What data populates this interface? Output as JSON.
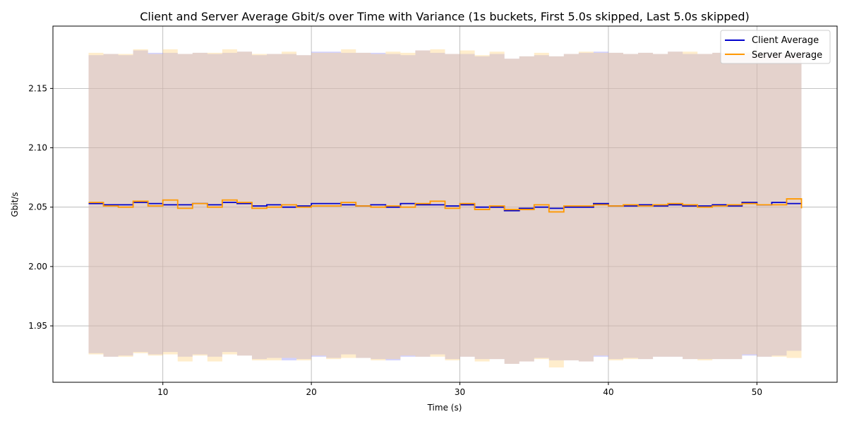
{
  "chart_data": {
    "type": "line",
    "title": "Client and Server Average Gbit/s over Time with Variance (1s buckets, First 5.0s skipped, Last 5.0s skipped)",
    "xlabel": "Time (s)",
    "ylabel": "Gbit/s",
    "xlim": [
      2.6,
      55.4
    ],
    "ylim": [
      1.9025,
      2.2025
    ],
    "xticks": [
      10,
      20,
      30,
      40,
      50
    ],
    "xtick_labels": [
      "10",
      "20",
      "30",
      "40",
      "50"
    ],
    "yticks": [
      1.95,
      2.0,
      2.05,
      2.1,
      2.15
    ],
    "ytick_labels": [
      "1.95",
      "2.00",
      "2.05",
      "2.10",
      "2.15"
    ],
    "grid": true,
    "legend_position": "top-right",
    "step": "post",
    "x": [
      5,
      6,
      7,
      8,
      9,
      10,
      11,
      12,
      13,
      14,
      15,
      16,
      17,
      18,
      19,
      20,
      21,
      22,
      23,
      24,
      25,
      26,
      27,
      28,
      29,
      30,
      31,
      32,
      33,
      34,
      35,
      36,
      37,
      38,
      39,
      40,
      41,
      42,
      43,
      44,
      45,
      46,
      47,
      48,
      49,
      50,
      51,
      52,
      53
    ],
    "series": [
      {
        "name": "Client Average",
        "color": "#0000cc",
        "band_color": "#8f8fff",
        "values": [
          2.053,
          2.052,
          2.052,
          2.054,
          2.053,
          2.052,
          2.052,
          2.053,
          2.052,
          2.054,
          2.053,
          2.051,
          2.052,
          2.05,
          2.051,
          2.053,
          2.053,
          2.052,
          2.051,
          2.052,
          2.05,
          2.053,
          2.052,
          2.052,
          2.051,
          2.052,
          2.05,
          2.05,
          2.047,
          2.049,
          2.05,
          2.049,
          2.05,
          2.05,
          2.053,
          2.051,
          2.051,
          2.052,
          2.051,
          2.052,
          2.051,
          2.051,
          2.052,
          2.051,
          2.054,
          2.052,
          2.054,
          2.053,
          2.053
        ],
        "upper": [
          2.178,
          2.179,
          2.178,
          2.182,
          2.18,
          2.18,
          2.179,
          2.18,
          2.179,
          2.18,
          2.181,
          2.178,
          2.179,
          2.179,
          2.178,
          2.181,
          2.181,
          2.18,
          2.18,
          2.18,
          2.179,
          2.178,
          2.182,
          2.18,
          2.179,
          2.179,
          2.177,
          2.179,
          2.175,
          2.177,
          2.178,
          2.177,
          2.179,
          2.18,
          2.181,
          2.18,
          2.179,
          2.18,
          2.179,
          2.181,
          2.179,
          2.179,
          2.18,
          2.18,
          2.18,
          2.18,
          2.18,
          2.18,
          2.18
        ],
        "lower": [
          1.927,
          1.924,
          1.925,
          1.928,
          1.926,
          1.928,
          1.924,
          1.926,
          1.924,
          1.928,
          1.925,
          1.922,
          1.923,
          1.921,
          1.922,
          1.924,
          1.923,
          1.926,
          1.923,
          1.922,
          1.921,
          1.924,
          1.924,
          1.926,
          1.922,
          1.924,
          1.922,
          1.922,
          1.918,
          1.92,
          1.923,
          1.921,
          1.921,
          1.92,
          1.924,
          1.922,
          1.923,
          1.922,
          1.924,
          1.924,
          1.922,
          1.922,
          1.922,
          1.922,
          1.925,
          1.924,
          1.925,
          1.929,
          1.929
        ]
      },
      {
        "name": "Server Average",
        "color": "#ff9900",
        "band_color": "#ffd27f",
        "values": [
          2.054,
          2.051,
          2.05,
          2.055,
          2.051,
          2.056,
          2.049,
          2.053,
          2.05,
          2.056,
          2.054,
          2.049,
          2.05,
          2.052,
          2.05,
          2.051,
          2.051,
          2.054,
          2.051,
          2.05,
          2.051,
          2.05,
          2.053,
          2.055,
          2.049,
          2.053,
          2.048,
          2.051,
          2.048,
          2.048,
          2.052,
          2.046,
          2.051,
          2.051,
          2.052,
          2.051,
          2.052,
          2.051,
          2.052,
          2.053,
          2.052,
          2.05,
          2.051,
          2.052,
          2.053,
          2.052,
          2.052,
          2.057,
          2.049
        ],
        "upper": [
          2.18,
          2.179,
          2.179,
          2.183,
          2.179,
          2.183,
          2.179,
          2.18,
          2.18,
          2.183,
          2.181,
          2.179,
          2.179,
          2.181,
          2.178,
          2.18,
          2.18,
          2.183,
          2.18,
          2.179,
          2.181,
          2.18,
          2.182,
          2.183,
          2.179,
          2.182,
          2.178,
          2.181,
          2.175,
          2.177,
          2.18,
          2.177,
          2.179,
          2.181,
          2.18,
          2.18,
          2.179,
          2.18,
          2.179,
          2.181,
          2.181,
          2.179,
          2.18,
          2.181,
          2.181,
          2.18,
          2.18,
          2.18,
          2.18
        ],
        "lower": [
          1.926,
          1.924,
          1.924,
          1.927,
          1.925,
          1.926,
          1.92,
          1.925,
          1.92,
          1.926,
          1.925,
          1.921,
          1.921,
          1.923,
          1.921,
          1.925,
          1.922,
          1.923,
          1.923,
          1.921,
          1.922,
          1.925,
          1.924,
          1.924,
          1.921,
          1.924,
          1.92,
          1.922,
          1.918,
          1.92,
          1.922,
          1.915,
          1.921,
          1.92,
          1.925,
          1.921,
          1.922,
          1.922,
          1.924,
          1.924,
          1.922,
          1.921,
          1.922,
          1.922,
          1.926,
          1.924,
          1.924,
          1.923,
          1.92
        ]
      }
    ]
  }
}
